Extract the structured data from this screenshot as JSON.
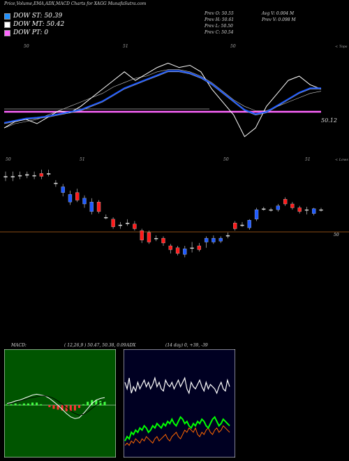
{
  "header": {
    "title": "Price,Volume,EMA,ADX,MACD Charts for XAGG MunafaSutra.com",
    "dow_st": "DOW ST: 50.39",
    "dow_mt": "DOW MT: 50.42",
    "dow_pt": "DOW PT: 0",
    "prev_open": "Prev  O: 50.55",
    "prev_high": "Prev  H: 50.61",
    "prev_low": "Prev  L: 50.50",
    "prev_close": "Prev  C: 50.54",
    "avg_vol": "Avg V: 0.004  M",
    "prev_vol": "Prev  V: 0.098 M"
  },
  "colors": {
    "dow_st": "#1e90ff",
    "dow_mt": "#ffffff",
    "dow_pt": "#ff66ff",
    "up_candle": "#1e5aff",
    "down_candle": "#ff1a1a",
    "support_line": "#b5651d",
    "ema_line": "#1e5aff",
    "macd_bg": "#005500",
    "adx_bg": "#000022"
  },
  "chart_data": [
    {
      "type": "line",
      "panel": "ema",
      "top_label": "< Tops",
      "tick_labels": [
        "50",
        "51",
        "50"
      ],
      "price_label": "50.12",
      "series": [
        {
          "values": [
            49.8,
            49.95,
            50.0,
            49.9,
            50.05,
            50.2,
            50.15,
            50.3,
            50.5,
            50.7,
            50.9,
            51.1,
            50.9,
            51.05,
            51.2,
            51.3,
            51.2,
            51.25,
            51.1,
            50.7,
            50.4,
            50.1,
            49.6,
            49.8,
            50.3,
            50.6,
            50.9,
            51.0,
            50.8,
            50.7
          ]
        },
        {
          "values": [
            49.9,
            49.95,
            50.0,
            50.02,
            50.05,
            50.1,
            50.15,
            50.2,
            50.3,
            50.4,
            50.55,
            50.7,
            50.8,
            50.9,
            51.0,
            51.1,
            51.1,
            51.05,
            50.95,
            50.8,
            50.6,
            50.4,
            50.2,
            50.1,
            50.15,
            50.3,
            50.45,
            50.6,
            50.7,
            50.7
          ]
        },
        {
          "values": [
            49.8,
            49.9,
            49.95,
            50.0,
            50.1,
            50.2,
            50.3,
            50.4,
            50.5,
            50.6,
            50.75,
            50.85,
            50.95,
            51.0,
            51.1,
            51.15,
            51.15,
            51.1,
            51.0,
            50.85,
            50.65,
            50.45,
            50.3,
            50.2,
            50.2,
            50.3,
            50.4,
            50.5,
            50.6,
            50.65
          ]
        }
      ]
    },
    {
      "type": "candlestick",
      "panel": "price",
      "bottom_label": "< Lows",
      "tick_labels": [
        "50",
        "51",
        "50",
        "51"
      ],
      "level_label": "50",
      "candles": [
        {
          "dir": "flat",
          "o": 50.95,
          "c": 50.95,
          "h": 51.0,
          "l": 50.9
        },
        {
          "dir": "flat",
          "o": 50.95,
          "c": 50.95,
          "h": 51.0,
          "l": 50.9
        },
        {
          "dir": "flat",
          "o": 50.96,
          "c": 50.96,
          "h": 51.0,
          "l": 50.92
        },
        {
          "dir": "flat",
          "o": 50.97,
          "c": 50.96,
          "h": 51.0,
          "l": 50.93
        },
        {
          "dir": "flat",
          "o": 50.96,
          "c": 50.96,
          "h": 51.0,
          "l": 50.92
        },
        {
          "dir": "down",
          "o": 50.98,
          "c": 50.95,
          "h": 51.02,
          "l": 50.92
        },
        {
          "dir": "flat",
          "o": 50.98,
          "c": 50.98,
          "h": 51.02,
          "l": 50.95
        },
        {
          "dir": "flat",
          "o": 50.88,
          "c": 50.88,
          "h": 50.91,
          "l": 50.84
        },
        {
          "dir": "up",
          "o": 50.78,
          "c": 50.84,
          "h": 50.87,
          "l": 50.74
        },
        {
          "dir": "up",
          "o": 50.68,
          "c": 50.76,
          "h": 50.8,
          "l": 50.65
        },
        {
          "dir": "down",
          "o": 50.78,
          "c": 50.7,
          "h": 50.82,
          "l": 50.68
        },
        {
          "dir": "up",
          "o": 50.66,
          "c": 50.72,
          "h": 50.75,
          "l": 50.62
        },
        {
          "dir": "up",
          "o": 50.58,
          "c": 50.68,
          "h": 50.72,
          "l": 50.55
        },
        {
          "dir": "down",
          "o": 50.68,
          "c": 50.58,
          "h": 50.7,
          "l": 50.56
        },
        {
          "dir": "flat",
          "o": 50.52,
          "c": 50.52,
          "h": 50.55,
          "l": 50.5
        },
        {
          "dir": "down",
          "o": 50.5,
          "c": 50.42,
          "h": 50.52,
          "l": 50.4
        },
        {
          "dir": "flat",
          "o": 50.44,
          "c": 50.44,
          "h": 50.47,
          "l": 50.4
        },
        {
          "dir": "flat",
          "o": 50.46,
          "c": 50.46,
          "h": 50.5,
          "l": 50.43
        },
        {
          "dir": "down",
          "o": 50.45,
          "c": 50.4,
          "h": 50.48,
          "l": 50.38
        },
        {
          "dir": "down",
          "o": 50.38,
          "c": 50.28,
          "h": 50.4,
          "l": 50.25
        },
        {
          "dir": "down",
          "o": 50.36,
          "c": 50.26,
          "h": 50.38,
          "l": 50.24
        },
        {
          "dir": "flat",
          "o": 50.3,
          "c": 50.3,
          "h": 50.33,
          "l": 50.27
        },
        {
          "dir": "down",
          "o": 50.3,
          "c": 50.25,
          "h": 50.32,
          "l": 50.22
        },
        {
          "dir": "down",
          "o": 50.22,
          "c": 50.18,
          "h": 50.24,
          "l": 50.14
        },
        {
          "dir": "down",
          "o": 50.2,
          "c": 50.14,
          "h": 50.22,
          "l": 50.12
        },
        {
          "dir": "up",
          "o": 50.13,
          "c": 50.19,
          "h": 50.22,
          "l": 50.1
        },
        {
          "dir": "flat",
          "o": 50.2,
          "c": 50.2,
          "h": 50.26,
          "l": 50.15
        },
        {
          "dir": "down",
          "o": 50.22,
          "c": 50.18,
          "h": 50.25,
          "l": 50.16
        },
        {
          "dir": "up",
          "o": 50.26,
          "c": 50.3,
          "h": 50.32,
          "l": 50.2
        },
        {
          "dir": "up",
          "o": 50.26,
          "c": 50.3,
          "h": 50.33,
          "l": 50.24
        },
        {
          "dir": "up",
          "o": 50.27,
          "c": 50.3,
          "h": 50.32,
          "l": 50.25
        },
        {
          "dir": "flat",
          "o": 50.33,
          "c": 50.33,
          "h": 50.36,
          "l": 50.3
        },
        {
          "dir": "down",
          "o": 50.46,
          "c": 50.4,
          "h": 50.48,
          "l": 50.38
        },
        {
          "dir": "flat",
          "o": 50.44,
          "c": 50.44,
          "h": 50.47,
          "l": 50.42
        },
        {
          "dir": "up",
          "o": 50.41,
          "c": 50.49,
          "h": 50.5,
          "l": 50.39
        },
        {
          "dir": "up",
          "o": 50.5,
          "c": 50.6,
          "h": 50.62,
          "l": 50.48
        },
        {
          "dir": "flat",
          "o": 50.61,
          "c": 50.61,
          "h": 50.63,
          "l": 50.59
        },
        {
          "dir": "flat",
          "o": 50.6,
          "c": 50.6,
          "h": 50.62,
          "l": 50.58
        },
        {
          "dir": "up",
          "o": 50.6,
          "c": 50.64,
          "h": 50.66,
          "l": 50.58
        },
        {
          "dir": "down",
          "o": 50.71,
          "c": 50.66,
          "h": 50.73,
          "l": 50.64
        },
        {
          "dir": "down",
          "o": 50.66,
          "c": 50.62,
          "h": 50.68,
          "l": 50.6
        },
        {
          "dir": "down",
          "o": 50.62,
          "c": 50.58,
          "h": 50.64,
          "l": 50.56
        },
        {
          "dir": "flat",
          "o": 50.6,
          "c": 50.6,
          "h": 50.63,
          "l": 50.55
        },
        {
          "dir": "up",
          "o": 50.56,
          "c": 50.61,
          "h": 50.62,
          "l": 50.54
        },
        {
          "dir": "flat",
          "o": 50.6,
          "c": 50.6,
          "h": 50.62,
          "l": 50.58
        }
      ]
    },
    {
      "type": "area",
      "panel": "macd",
      "label": "MACD:",
      "params": "( 12,26,9 ) 50.47,  50.38,  0.09",
      "series": [
        {
          "values": [
            0.02,
            0.03,
            0.05,
            0.06,
            0.08,
            0.1,
            0.12,
            0.13,
            0.12,
            0.11,
            0.08,
            0.04,
            0.0,
            -0.05,
            -0.1,
            -0.14,
            -0.16,
            -0.15,
            -0.1,
            -0.04,
            0.02,
            0.06,
            0.08,
            0.09
          ]
        },
        {
          "values": [
            0.01,
            0.02,
            0.03,
            0.05,
            0.06,
            0.08,
            0.09,
            0.1,
            0.11,
            0.11,
            0.1,
            0.08,
            0.05,
            0.01,
            -0.03,
            -0.07,
            -0.1,
            -0.12,
            -0.11,
            -0.08,
            -0.04,
            0.0,
            0.03,
            0.05
          ]
        }
      ]
    },
    {
      "type": "line",
      "panel": "adx",
      "label": "ADX",
      "params": "(14 day) 0,  +39,  -39",
      "series": [
        {
          "values": [
            33,
            30,
            35,
            28,
            31,
            29,
            33,
            30,
            32,
            34,
            31,
            33,
            30,
            32,
            35,
            31,
            33,
            30,
            29,
            34,
            32,
            31,
            33,
            30,
            32,
            34,
            31,
            33,
            35,
            30,
            28,
            33,
            31,
            30,
            32,
            34,
            31,
            29,
            33,
            30,
            32,
            31,
            30,
            28,
            31,
            33,
            30,
            29,
            34,
            31
          ]
        },
        {
          "values": [
            6,
            8,
            7,
            10,
            9,
            11,
            10,
            12,
            11,
            13,
            12,
            10,
            11,
            13,
            12,
            14,
            13,
            12,
            14,
            13,
            15,
            14,
            16,
            14,
            13,
            15,
            17,
            16,
            14,
            15,
            13,
            12,
            14,
            13,
            15,
            14,
            16,
            15,
            13,
            12,
            14,
            16,
            17,
            15,
            13,
            14,
            16,
            15,
            14,
            13
          ]
        },
        {
          "values": [
            4,
            5,
            4,
            6,
            5,
            7,
            6,
            5,
            7,
            6,
            8,
            7,
            6,
            5,
            7,
            8,
            6,
            7,
            8,
            9,
            7,
            6,
            8,
            9,
            10,
            8,
            7,
            9,
            11,
            10,
            12,
            11,
            10,
            12,
            9,
            8,
            10,
            9,
            11,
            12,
            10,
            9,
            11,
            12,
            10,
            11,
            13,
            12,
            11,
            10
          ]
        }
      ]
    }
  ]
}
